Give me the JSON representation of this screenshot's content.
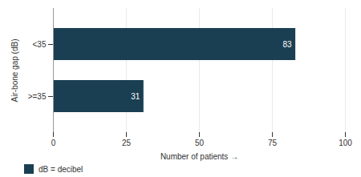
{
  "chart_data": {
    "type": "bar",
    "orientation": "horizontal",
    "categories": [
      ">=35",
      "<35"
    ],
    "series": [
      {
        "name": "dB = decibel",
        "color": "#1b3f52",
        "values": [
          31,
          83
        ]
      }
    ],
    "xlabel": "Number of patients",
    "ylabel": "Air-bone gap (dB)",
    "xlim": [
      0,
      100
    ],
    "xticks": [
      0,
      25,
      50,
      75,
      100
    ],
    "grid": true,
    "data_labels": true,
    "legend": "lower left"
  }
}
